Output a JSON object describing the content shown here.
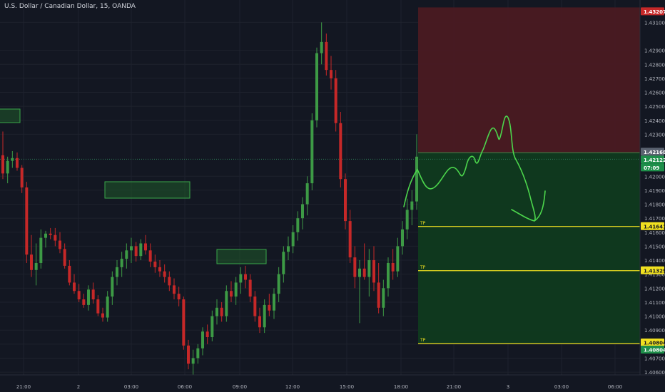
{
  "header": {
    "title": "U.S. Dollar / Canadian Dollar, 15, OANDA"
  },
  "colors": {
    "background": "#131722",
    "up": "#26a69a",
    "up_candle": "#3d9a45",
    "down_candle": "#c62828",
    "grid": "#1e222d",
    "axis_text": "#b2b5be",
    "stop_zone": "#4a1a22",
    "profit_zone": "#0f3a1f",
    "tp_line": "#f0e020",
    "drawing_green": "#4cd64c"
  },
  "price_axis": {
    "ticks": [
      "1.43100",
      "1.42900",
      "1.42800",
      "1.42700",
      "1.42600",
      "1.42500",
      "1.42400",
      "1.42300",
      "1.42000",
      "1.41900",
      "1.41800",
      "1.41700",
      "1.41600",
      "1.41500",
      "1.41400",
      "1.41300",
      "1.41200",
      "1.41100",
      "1.41000",
      "1.40900",
      "1.40800",
      "1.40700",
      "1.40600"
    ],
    "labels": {
      "stop": "1.43207",
      "entry": "1.42168",
      "current": "1.42122",
      "countdown": "07:09",
      "tp1": "1.41641",
      "tp2": "1.41325",
      "tp3a": "1.40804",
      "tp3b": "1.40804"
    }
  },
  "time_axis": {
    "ticks": [
      "21:00",
      "2",
      "03:00",
      "06:00",
      "09:00",
      "12:00",
      "15:00",
      "18:00",
      "21:00",
      "3",
      "03:00",
      "06:00"
    ]
  },
  "tp_labels": [
    "TP",
    "TP",
    "TP"
  ],
  "chart_data": {
    "type": "candlestick",
    "title": "U.S. Dollar / Canadian Dollar, 15, OANDA",
    "y_range": [
      1.4058,
      1.4326
    ],
    "price_levels": {
      "stop_loss": 1.43207,
      "entry": 1.42168,
      "current": 1.42122,
      "take_profit": [
        1.41641,
        1.41325,
        1.40804
      ]
    },
    "candles": [
      [
        1.4215,
        1.4232,
        1.4198,
        1.4202
      ],
      [
        1.4202,
        1.4214,
        1.4195,
        1.4211
      ],
      [
        1.4211,
        1.4218,
        1.4206,
        1.4213
      ],
      [
        1.4213,
        1.4217,
        1.4204,
        1.4206
      ],
      [
        1.4206,
        1.4208,
        1.4188,
        1.4192
      ],
      [
        1.4192,
        1.4196,
        1.4138,
        1.4144
      ],
      [
        1.4144,
        1.4158,
        1.4128,
        1.4133
      ],
      [
        1.4133,
        1.4152,
        1.4122,
        1.4138
      ],
      [
        1.4138,
        1.4162,
        1.4134,
        1.4156
      ],
      [
        1.4156,
        1.4161,
        1.4149,
        1.4159
      ],
      [
        1.4159,
        1.4163,
        1.4155,
        1.4158
      ],
      [
        1.4158,
        1.4163,
        1.415,
        1.4154
      ],
      [
        1.4154,
        1.416,
        1.4145,
        1.4148
      ],
      [
        1.4148,
        1.4152,
        1.4134,
        1.4136
      ],
      [
        1.4136,
        1.414,
        1.4122,
        1.4124
      ],
      [
        1.4124,
        1.413,
        1.4116,
        1.4118
      ],
      [
        1.4118,
        1.4123,
        1.411,
        1.4112
      ],
      [
        1.4112,
        1.4116,
        1.4106,
        1.4108
      ],
      [
        1.4108,
        1.4122,
        1.4104,
        1.4119
      ],
      [
        1.4119,
        1.4124,
        1.4109,
        1.4112
      ],
      [
        1.4112,
        1.4115,
        1.41,
        1.4102
      ],
      [
        1.4102,
        1.4106,
        1.4096,
        1.4099
      ],
      [
        1.4099,
        1.4118,
        1.4096,
        1.4114
      ],
      [
        1.4114,
        1.4132,
        1.4108,
        1.4128
      ],
      [
        1.4128,
        1.414,
        1.4122,
        1.4135
      ],
      [
        1.4135,
        1.4146,
        1.4128,
        1.4141
      ],
      [
        1.4141,
        1.4152,
        1.4134,
        1.4147
      ],
      [
        1.4147,
        1.4156,
        1.4138,
        1.415
      ],
      [
        1.415,
        1.4153,
        1.4139,
        1.4143
      ],
      [
        1.4143,
        1.4155,
        1.414,
        1.4152
      ],
      [
        1.4152,
        1.4158,
        1.4144,
        1.4147
      ],
      [
        1.4147,
        1.4152,
        1.4135,
        1.4139
      ],
      [
        1.4139,
        1.4144,
        1.4131,
        1.4135
      ],
      [
        1.4135,
        1.414,
        1.4128,
        1.4132
      ],
      [
        1.4132,
        1.4137,
        1.4124,
        1.4128
      ],
      [
        1.4128,
        1.4132,
        1.4118,
        1.4122
      ],
      [
        1.4122,
        1.4127,
        1.4112,
        1.4116
      ],
      [
        1.4116,
        1.4121,
        1.4107,
        1.4112
      ],
      [
        1.4112,
        1.4114,
        1.4076,
        1.4079
      ],
      [
        1.4079,
        1.4083,
        1.4062,
        1.4066
      ],
      [
        1.4066,
        1.4076,
        1.4056,
        1.407
      ],
      [
        1.407,
        1.408,
        1.4066,
        1.4077
      ],
      [
        1.4077,
        1.4092,
        1.4072,
        1.4089
      ],
      [
        1.4089,
        1.4094,
        1.408,
        1.4085
      ],
      [
        1.4085,
        1.4104,
        1.4082,
        1.41
      ],
      [
        1.41,
        1.4112,
        1.4094,
        1.4106
      ],
      [
        1.4106,
        1.411,
        1.4096,
        1.41
      ],
      [
        1.41,
        1.4122,
        1.4096,
        1.4118
      ],
      [
        1.4118,
        1.4125,
        1.411,
        1.4114
      ],
      [
        1.4114,
        1.4128,
        1.4108,
        1.4124
      ],
      [
        1.4124,
        1.4135,
        1.4116,
        1.413
      ],
      [
        1.413,
        1.4136,
        1.412,
        1.4126
      ],
      [
        1.4126,
        1.413,
        1.411,
        1.4114
      ],
      [
        1.4114,
        1.4118,
        1.4096,
        1.41
      ],
      [
        1.41,
        1.4106,
        1.4088,
        1.4092
      ],
      [
        1.4092,
        1.4112,
        1.4088,
        1.4108
      ],
      [
        1.4108,
        1.4116,
        1.41,
        1.4104
      ],
      [
        1.4104,
        1.412,
        1.4098,
        1.4116
      ],
      [
        1.4116,
        1.4135,
        1.411,
        1.413
      ],
      [
        1.413,
        1.415,
        1.4124,
        1.4146
      ],
      [
        1.4146,
        1.4157,
        1.414,
        1.415
      ],
      [
        1.415,
        1.4165,
        1.4145,
        1.416
      ],
      [
        1.416,
        1.4175,
        1.4154,
        1.417
      ],
      [
        1.417,
        1.4185,
        1.4162,
        1.418
      ],
      [
        1.418,
        1.42,
        1.4172,
        1.4195
      ],
      [
        1.4195,
        1.4245,
        1.419,
        1.424
      ],
      [
        1.424,
        1.4292,
        1.4235,
        1.4288
      ],
      [
        1.4288,
        1.431,
        1.428,
        1.4296
      ],
      [
        1.4296,
        1.4302,
        1.4272,
        1.4276
      ],
      [
        1.4276,
        1.4286,
        1.4262,
        1.427
      ],
      [
        1.427,
        1.4276,
        1.4232,
        1.4238
      ],
      [
        1.4238,
        1.4246,
        1.4192,
        1.4198
      ],
      [
        1.4198,
        1.4202,
        1.4162,
        1.4168
      ],
      [
        1.4168,
        1.4176,
        1.4138,
        1.4142
      ],
      [
        1.4142,
        1.415,
        1.412,
        1.4128
      ],
      [
        1.4128,
        1.414,
        1.4095,
        1.4134
      ],
      [
        1.4134,
        1.4152,
        1.4126,
        1.4128
      ],
      [
        1.4128,
        1.4148,
        1.4114,
        1.414
      ],
      [
        1.414,
        1.415,
        1.4118,
        1.4124
      ],
      [
        1.4124,
        1.4138,
        1.4102,
        1.4106
      ],
      [
        1.4106,
        1.4126,
        1.41,
        1.412
      ],
      [
        1.412,
        1.4142,
        1.4114,
        1.4138
      ],
      [
        1.4138,
        1.4148,
        1.4126,
        1.4132
      ],
      [
        1.4132,
        1.4156,
        1.4128,
        1.415
      ],
      [
        1.415,
        1.4168,
        1.4144,
        1.4162
      ],
      [
        1.4162,
        1.4184,
        1.4155,
        1.4176
      ],
      [
        1.4176,
        1.419,
        1.4165,
        1.4182
      ],
      [
        1.4182,
        1.423,
        1.4176,
        1.4214
      ]
    ]
  }
}
